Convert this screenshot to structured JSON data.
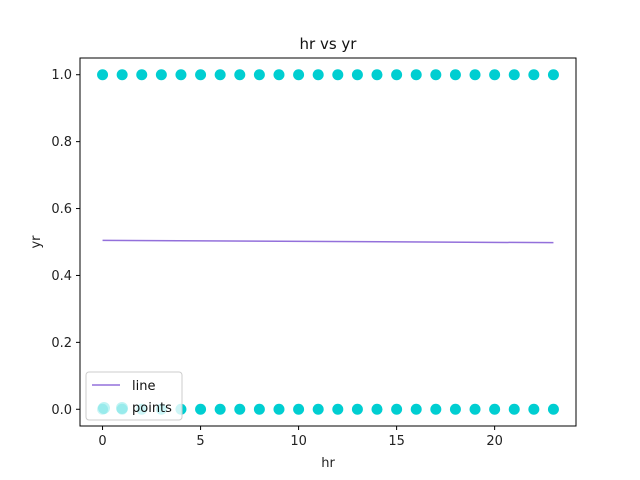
{
  "chart_data": {
    "type": "scatter",
    "title": "hr vs yr",
    "xlabel": "hr",
    "ylabel": "yr",
    "xlim": [
      -1.15,
      24.15
    ],
    "ylim": [
      -0.05,
      1.05
    ],
    "xticks": [
      0,
      5,
      10,
      15,
      20
    ],
    "yticks": [
      0.0,
      0.2,
      0.4,
      0.6,
      0.8,
      1.0
    ],
    "xtick_labels": [
      "0",
      "5",
      "10",
      "15",
      "20"
    ],
    "ytick_labels": [
      "0.0",
      "0.2",
      "0.4",
      "0.6",
      "0.8",
      "1.0"
    ],
    "grid": false,
    "legend_position": "lower-left",
    "series": [
      {
        "name": "points",
        "kind": "scatter",
        "color": "#00ced1",
        "x": [
          0,
          1,
          2,
          3,
          4,
          5,
          6,
          7,
          8,
          9,
          10,
          11,
          12,
          13,
          14,
          15,
          16,
          17,
          18,
          19,
          20,
          21,
          22,
          23,
          0,
          1,
          2,
          3,
          4,
          5,
          6,
          7,
          8,
          9,
          10,
          11,
          12,
          13,
          14,
          15,
          16,
          17,
          18,
          19,
          20,
          21,
          22,
          23
        ],
        "y": [
          0,
          0,
          0,
          0,
          0,
          0,
          0,
          0,
          0,
          0,
          0,
          0,
          0,
          0,
          0,
          0,
          0,
          0,
          0,
          0,
          0,
          0,
          0,
          0,
          1,
          1,
          1,
          1,
          1,
          1,
          1,
          1,
          1,
          1,
          1,
          1,
          1,
          1,
          1,
          1,
          1,
          1,
          1,
          1,
          1,
          1,
          1,
          1
        ]
      },
      {
        "name": "line",
        "kind": "line",
        "color": "#9370db",
        "x": [
          0,
          23
        ],
        "y": [
          0.505,
          0.498
        ]
      }
    ]
  }
}
